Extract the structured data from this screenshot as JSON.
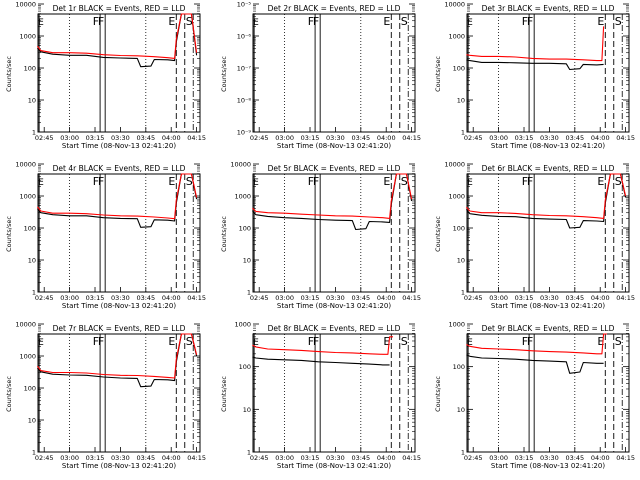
{
  "chart_data": [
    {
      "type": "line",
      "title": "Det 1r BLACK = Events, RED = LLD",
      "xlabel": "Start Time (08-Nov-13 02:41:20)",
      "ylabel": "Counts/sec",
      "yscale": "log",
      "ylim": [
        1,
        10000
      ],
      "y_tick_labels": [
        "1",
        "10",
        "100",
        "1000",
        "10000"
      ],
      "x_tick_labels": [
        "02:45",
        "03:00",
        "03:15",
        "03:30",
        "03:45",
        "04:00",
        "04:15"
      ],
      "vertical_markers": [
        "E",
        "F",
        "F",
        "E",
        "S"
      ],
      "series": [
        {
          "name": "Events",
          "color": "#000000",
          "x": [
            "02:41",
            "02:43",
            "02:50",
            "03:00",
            "03:10",
            "03:20",
            "03:30",
            "03:40",
            "03:42",
            "03:48",
            "03:50",
            "03:58",
            "04:02",
            "04:03",
            "04:06",
            "04:09",
            "04:12",
            "04:15"
          ],
          "values": [
            420,
            320,
            270,
            250,
            250,
            215,
            205,
            200,
            110,
            115,
            185,
            180,
            170,
            650,
            6000,
            9000,
            7000,
            250
          ]
        },
        {
          "name": "LLD",
          "color": "#ff0000",
          "x": [
            "02:41",
            "02:43",
            "02:50",
            "03:00",
            "03:10",
            "03:20",
            "03:30",
            "03:40",
            "03:50",
            "03:58",
            "04:02",
            "04:03",
            "04:06",
            "04:09",
            "04:12",
            "04:15"
          ],
          "values": [
            480,
            350,
            300,
            300,
            290,
            260,
            245,
            240,
            225,
            210,
            200,
            800,
            7000,
            10000,
            8000,
            300
          ]
        }
      ]
    },
    {
      "type": "line",
      "title": "Det 2r BLACK = Events, RED = LLD",
      "xlabel": "Start Time (08-Nov-13 02:41:20)",
      "ylabel": "Counts/sec",
      "yscale": "log",
      "ylim": [
        1e-09,
        1e-05
      ],
      "y_tick_labels": [
        "10⁻⁹",
        "10⁻⁸",
        "10⁻⁷",
        "10⁻⁶",
        "10⁻⁵"
      ],
      "x_tick_labels": [
        "02:45",
        "03:00",
        "03:15",
        "03:30",
        "03:45",
        "04:00",
        "04:15"
      ],
      "vertical_markers": [
        "E",
        "F",
        "F",
        "E",
        "S"
      ],
      "series": []
    },
    {
      "type": "line",
      "title": "Det 3r BLACK = Events, RED = LLD",
      "xlabel": "Start Time (08-Nov-13 02:41:20)",
      "ylabel": "Counts/sec",
      "yscale": "log",
      "ylim": [
        1,
        10000
      ],
      "y_tick_labels": [
        "1",
        "10",
        "100",
        "1000",
        "10000"
      ],
      "x_tick_labels": [
        "02:45",
        "03:00",
        "03:15",
        "03:30",
        "03:45",
        "04:00",
        "04:15"
      ],
      "vertical_markers": [
        "E",
        "F",
        "F",
        "E",
        "S"
      ],
      "series": [
        {
          "name": "Events",
          "color": "#000000",
          "x": [
            "02:41",
            "02:43",
            "02:50",
            "03:00",
            "03:10",
            "03:20",
            "03:30",
            "03:40",
            "03:42",
            "03:48",
            "03:50",
            "03:58",
            "04:02"
          ],
          "values": [
            180,
            170,
            150,
            150,
            145,
            140,
            140,
            135,
            90,
            95,
            130,
            125,
            130
          ]
        },
        {
          "name": "LLD",
          "color": "#ff0000",
          "x": [
            "02:41",
            "02:43",
            "02:50",
            "03:00",
            "03:10",
            "03:20",
            "03:30",
            "03:40",
            "03:50",
            "03:58",
            "04:01",
            "04:02"
          ],
          "values": [
            260,
            250,
            230,
            230,
            220,
            200,
            190,
            190,
            180,
            170,
            170,
            2000
          ]
        }
      ]
    },
    {
      "type": "line",
      "title": "Det 4r BLACK = Events, RED = LLD",
      "xlabel": "Start Time (08-Nov-13 02:41:20)",
      "ylabel": "Counts/sec",
      "yscale": "log",
      "ylim": [
        1,
        10000
      ],
      "y_tick_labels": [
        "1",
        "10",
        "100",
        "1000",
        "10000"
      ],
      "x_tick_labels": [
        "02:45",
        "03:00",
        "03:15",
        "03:30",
        "03:45",
        "04:00",
        "04:15"
      ],
      "vertical_markers": [
        "E",
        "F",
        "F",
        "E",
        "S"
      ],
      "series": [
        {
          "name": "Events",
          "color": "#000000",
          "x": [
            "02:41",
            "02:43",
            "02:50",
            "03:00",
            "03:10",
            "03:20",
            "03:30",
            "03:40",
            "03:42",
            "03:48",
            "03:50",
            "03:58",
            "04:02",
            "04:03",
            "04:06",
            "04:09",
            "04:12",
            "04:15"
          ],
          "values": [
            400,
            300,
            260,
            240,
            240,
            210,
            200,
            195,
            105,
            110,
            180,
            175,
            165,
            600,
            5500,
            8500,
            6500,
            800
          ]
        },
        {
          "name": "LLD",
          "color": "#ff0000",
          "x": [
            "02:41",
            "02:43",
            "02:50",
            "03:00",
            "03:10",
            "03:20",
            "03:30",
            "03:40",
            "03:50",
            "03:58",
            "04:02",
            "04:03",
            "04:06",
            "04:09",
            "04:12",
            "04:15"
          ],
          "values": [
            460,
            340,
            290,
            290,
            280,
            255,
            240,
            235,
            220,
            205,
            195,
            750,
            6500,
            9500,
            7500,
            900
          ]
        }
      ]
    },
    {
      "type": "line",
      "title": "Det 5r BLACK = Events, RED = LLD",
      "xlabel": "Start Time (08-Nov-13 02:41:20)",
      "ylabel": "Counts/sec",
      "yscale": "log",
      "ylim": [
        1,
        10000
      ],
      "y_tick_labels": [
        "1",
        "10",
        "100",
        "1000",
        "10000"
      ],
      "x_tick_labels": [
        "02:45",
        "03:00",
        "03:15",
        "03:30",
        "03:45",
        "04:00",
        "04:15"
      ],
      "vertical_markers": [
        "E",
        "F",
        "F",
        "E",
        "S"
      ],
      "series": [
        {
          "name": "Events",
          "color": "#000000",
          "x": [
            "02:41",
            "02:43",
            "02:50",
            "03:00",
            "03:10",
            "03:20",
            "03:30",
            "03:40",
            "03:42",
            "03:48",
            "03:50",
            "03:58",
            "04:02",
            "04:03",
            "04:06",
            "04:09",
            "04:12",
            "04:15"
          ],
          "values": [
            350,
            260,
            230,
            210,
            200,
            185,
            175,
            170,
            90,
            95,
            160,
            155,
            150,
            550,
            5000,
            8000,
            6000,
            700
          ]
        },
        {
          "name": "LLD",
          "color": "#ff0000",
          "x": [
            "02:41",
            "02:43",
            "02:50",
            "03:00",
            "03:10",
            "03:20",
            "03:30",
            "03:40",
            "03:50",
            "03:58",
            "04:02",
            "04:03",
            "04:06",
            "04:09",
            "04:12",
            "04:15"
          ],
          "values": [
            420,
            330,
            300,
            290,
            270,
            255,
            240,
            235,
            220,
            210,
            200,
            700,
            6000,
            9000,
            7000,
            800
          ]
        }
      ]
    },
    {
      "type": "line",
      "title": "Det 6r BLACK = Events, RED = LLD",
      "xlabel": "Start Time (08-Nov-13 02:41:20)",
      "ylabel": "Counts/sec",
      "yscale": "log",
      "ylim": [
        1,
        10000
      ],
      "y_tick_labels": [
        "1",
        "10",
        "100",
        "1000",
        "10000"
      ],
      "x_tick_labels": [
        "02:45",
        "03:00",
        "03:15",
        "03:30",
        "03:45",
        "04:00",
        "04:15"
      ],
      "vertical_markers": [
        "E",
        "F",
        "F",
        "E",
        "S"
      ],
      "series": [
        {
          "name": "Events",
          "color": "#000000",
          "x": [
            "02:41",
            "02:43",
            "02:50",
            "03:00",
            "03:10",
            "03:20",
            "03:30",
            "03:40",
            "03:42",
            "03:48",
            "03:50",
            "03:58",
            "04:02",
            "04:03",
            "04:06",
            "04:09",
            "04:12",
            "04:15"
          ],
          "values": [
            380,
            280,
            250,
            230,
            225,
            200,
            190,
            185,
            100,
            105,
            170,
            165,
            160,
            600,
            5500,
            8500,
            6500,
            900
          ]
        },
        {
          "name": "LLD",
          "color": "#ff0000",
          "x": [
            "02:41",
            "02:43",
            "02:50",
            "03:00",
            "03:10",
            "03:20",
            "03:30",
            "03:40",
            "03:50",
            "03:58",
            "04:02",
            "04:03",
            "04:06",
            "04:09",
            "04:12",
            "04:15"
          ],
          "values": [
            450,
            340,
            300,
            300,
            285,
            260,
            245,
            240,
            225,
            210,
            200,
            750,
            6500,
            9500,
            7500,
            1000
          ]
        }
      ]
    },
    {
      "type": "line",
      "title": "Det 7r BLACK = Events, RED = LLD",
      "xlabel": "Start Time (08-Nov-13 02:41:20)",
      "ylabel": "Counts/sec",
      "yscale": "log",
      "ylim": [
        1,
        10000
      ],
      "y_tick_labels": [
        "1",
        "10",
        "100",
        "1000",
        "10000"
      ],
      "x_tick_labels": [
        "02:45",
        "03:00",
        "03:15",
        "03:30",
        "03:45",
        "04:00",
        "04:15"
      ],
      "vertical_markers": [
        "E",
        "F",
        "F",
        "E",
        "S"
      ],
      "series": [
        {
          "name": "Events",
          "color": "#000000",
          "x": [
            "02:41",
            "02:43",
            "02:50",
            "03:00",
            "03:10",
            "03:20",
            "03:30",
            "03:40",
            "03:42",
            "03:48",
            "03:50",
            "03:58",
            "04:02",
            "04:03",
            "04:06",
            "04:09",
            "04:12",
            "04:15"
          ],
          "values": [
            420,
            320,
            270,
            255,
            250,
            220,
            205,
            200,
            110,
            115,
            185,
            180,
            170,
            650,
            6000,
            9000,
            7000,
            1000
          ]
        },
        {
          "name": "LLD",
          "color": "#ff0000",
          "x": [
            "02:41",
            "02:43",
            "02:50",
            "03:00",
            "03:10",
            "03:20",
            "03:30",
            "03:40",
            "03:50",
            "03:58",
            "04:02",
            "04:03",
            "04:06",
            "04:09",
            "04:12",
            "04:15"
          ],
          "values": [
            480,
            350,
            305,
            305,
            295,
            265,
            250,
            245,
            230,
            215,
            205,
            800,
            7000,
            10000,
            8000,
            1100
          ]
        }
      ]
    },
    {
      "type": "line",
      "title": "Det 8r BLACK = Events, RED = LLD",
      "xlabel": "Start Time (08-Nov-13 02:41:20)",
      "ylabel": "Counts/sec",
      "yscale": "log",
      "ylim": [
        1,
        1000
      ],
      "y_tick_labels": [
        "1",
        "10",
        "100",
        "1000"
      ],
      "x_tick_labels": [
        "02:45",
        "03:00",
        "03:15",
        "03:30",
        "03:45",
        "04:00",
        "04:15"
      ],
      "vertical_markers": [
        "E",
        "F",
        "F",
        "E",
        "S"
      ],
      "series": [
        {
          "name": "Events",
          "color": "#000000",
          "x": [
            "02:41",
            "02:43",
            "02:50",
            "03:00",
            "03:10",
            "03:20",
            "03:30",
            "03:40",
            "03:50",
            "03:58",
            "04:02"
          ],
          "values": [
            170,
            160,
            150,
            145,
            140,
            130,
            125,
            120,
            115,
            110,
            110
          ]
        },
        {
          "name": "LLD",
          "color": "#ff0000",
          "x": [
            "02:41",
            "02:43",
            "02:50",
            "03:00",
            "03:10",
            "03:20",
            "03:30",
            "03:40",
            "03:50",
            "03:58",
            "04:01",
            "04:02",
            "04:04"
          ],
          "values": [
            320,
            290,
            260,
            250,
            240,
            225,
            215,
            210,
            200,
            195,
            195,
            500,
            500
          ]
        }
      ]
    },
    {
      "type": "line",
      "title": "Det 9r BLACK = Events, RED = LLD",
      "xlabel": "Start Time (08-Nov-13 02:41:20)",
      "ylabel": "Counts/sec",
      "yscale": "log",
      "ylim": [
        1,
        1000
      ],
      "y_tick_labels": [
        "1",
        "10",
        "100",
        "1000"
      ],
      "x_tick_labels": [
        "02:45",
        "03:00",
        "03:15",
        "03:30",
        "03:45",
        "04:00",
        "04:15"
      ],
      "vertical_markers": [
        "E",
        "F",
        "F",
        "E",
        "S"
      ],
      "series": [
        {
          "name": "Events",
          "color": "#000000",
          "x": [
            "02:41",
            "02:43",
            "02:50",
            "03:00",
            "03:10",
            "03:20",
            "03:30",
            "03:40",
            "03:42",
            "03:48",
            "03:50",
            "03:58",
            "04:02"
          ],
          "values": [
            190,
            175,
            160,
            155,
            150,
            140,
            135,
            130,
            70,
            75,
            125,
            120,
            120
          ]
        },
        {
          "name": "LLD",
          "color": "#ff0000",
          "x": [
            "02:41",
            "02:43",
            "02:50",
            "03:00",
            "03:10",
            "03:20",
            "03:30",
            "03:40",
            "03:50",
            "03:58",
            "04:01",
            "04:02",
            "04:04"
          ],
          "values": [
            330,
            300,
            270,
            260,
            250,
            235,
            225,
            220,
            210,
            200,
            200,
            800,
            800
          ]
        }
      ]
    }
  ]
}
